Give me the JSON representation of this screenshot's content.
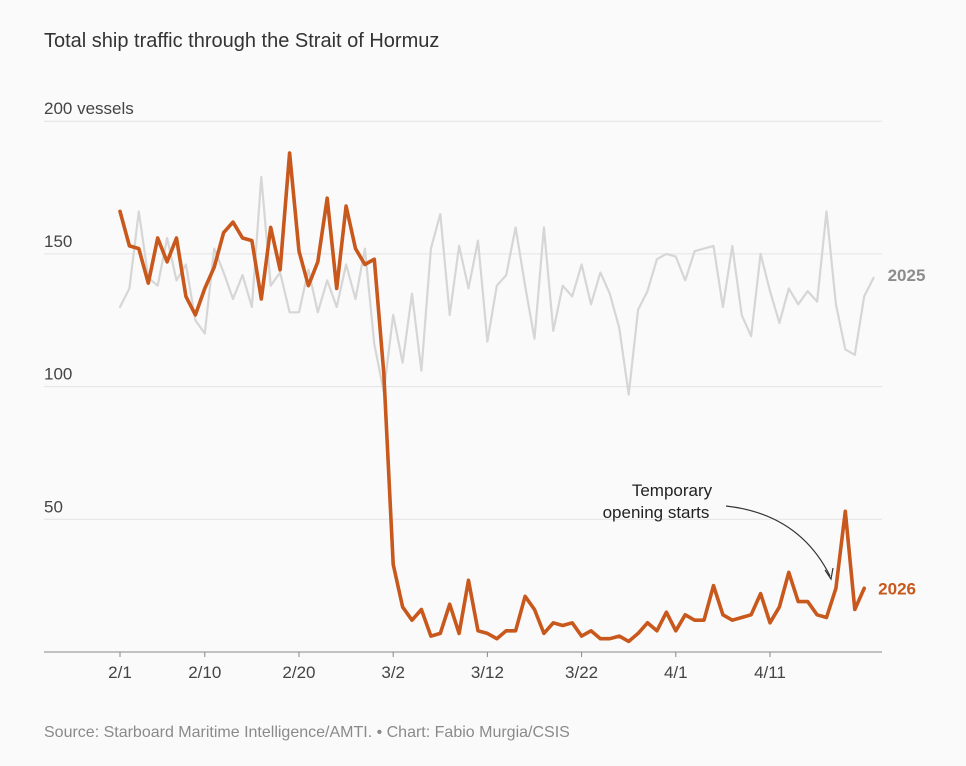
{
  "chart_data": {
    "type": "line",
    "title": "Total ship traffic through the Strait of Hormuz",
    "y_unit_label": "200 vessels",
    "ylim": [
      0,
      200
    ],
    "yticks": [
      50,
      100,
      150,
      200
    ],
    "ytick_labels": [
      "50",
      "100",
      "150",
      "200 vessels"
    ],
    "xtick_labels": [
      "2/1",
      "2/10",
      "2/20",
      "3/2",
      "3/12",
      "3/22",
      "4/1",
      "4/11"
    ],
    "xtick_days": [
      1,
      10,
      20,
      30,
      40,
      50,
      60,
      70
    ],
    "x_start": "2/1",
    "grid": true,
    "series": [
      {
        "name": "2025",
        "color": "#d6d6d6",
        "label_color": "#8c8c8c",
        "values": [
          130,
          137,
          166,
          141,
          138,
          156,
          140,
          146,
          125,
          120,
          152,
          143,
          133,
          142,
          130,
          179,
          138,
          143,
          128,
          128,
          144,
          128,
          140,
          130,
          146,
          133,
          152,
          116,
          98,
          127,
          109,
          135,
          106,
          152,
          165,
          127,
          153,
          137,
          155,
          117,
          138,
          142,
          160,
          138,
          118,
          160,
          121,
          138,
          134,
          146,
          131,
          143,
          135,
          122,
          97,
          129,
          136,
          148,
          150,
          149,
          140,
          151,
          152,
          153,
          130,
          153,
          127,
          119,
          150,
          136,
          124,
          137,
          131,
          136,
          132,
          166,
          131,
          114,
          112,
          134,
          141
        ]
      },
      {
        "name": "2026",
        "color": "#c8581c",
        "label_color": "#c8581c",
        "values": [
          166,
          153,
          152,
          139,
          156,
          147,
          156,
          134,
          127,
          137,
          145,
          158,
          162,
          156,
          155,
          133,
          160,
          144,
          188,
          151,
          138,
          147,
          171,
          137,
          168,
          152,
          146,
          148,
          105,
          33,
          17,
          12,
          16,
          6,
          7,
          18,
          7,
          27,
          8,
          7,
          5,
          8,
          8,
          21,
          16,
          7,
          11,
          10,
          11,
          6,
          8,
          5,
          5,
          6,
          4,
          7,
          11,
          8,
          15,
          8,
          14,
          12,
          12,
          25,
          14,
          12,
          13,
          14,
          22,
          11,
          17,
          30,
          19,
          19,
          14,
          13,
          24,
          53,
          16,
          24
        ]
      }
    ],
    "annotation": {
      "line1": "Temporary",
      "line2": "opening starts"
    },
    "source": "Source: Starboard Maritime Intelligence/AMTI. • Chart: Fabio Murgia/CSIS"
  }
}
